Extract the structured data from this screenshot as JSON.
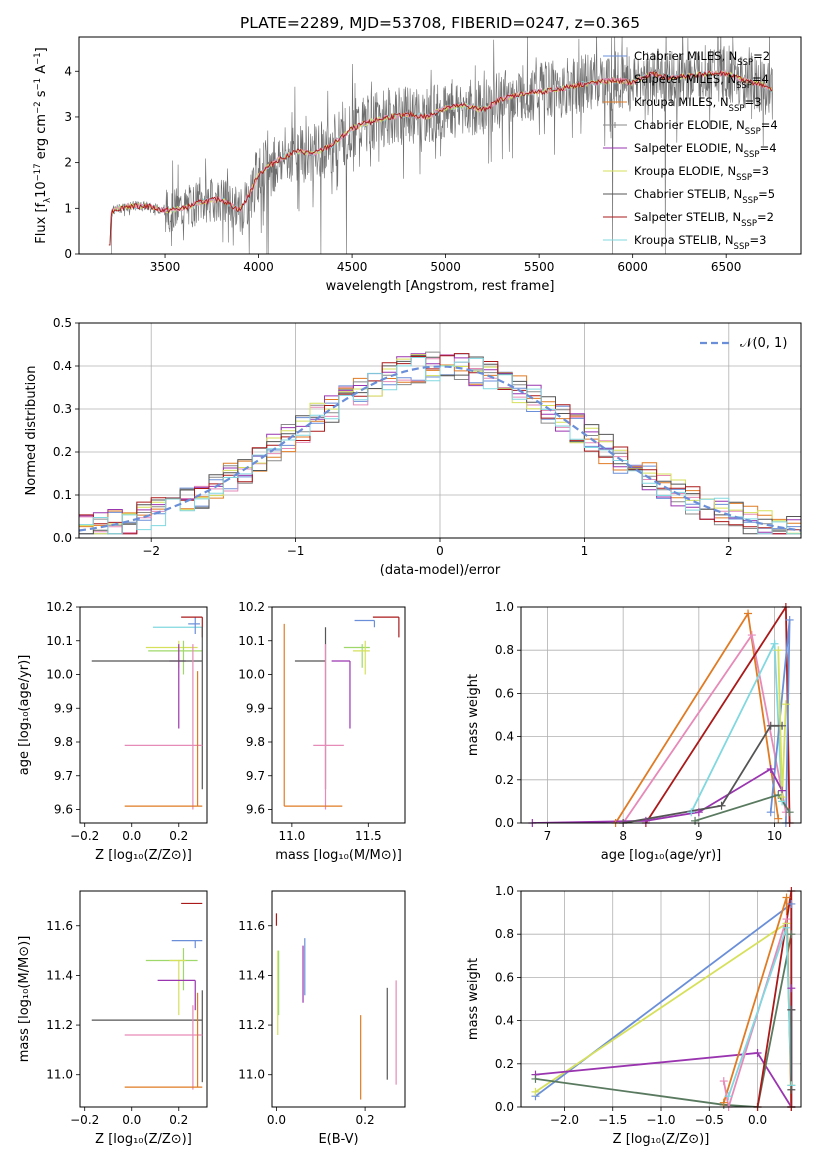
{
  "title": "PLATE=2289, MJD=53708, FIBERID=0247, z=0.365",
  "colors": {
    "Chabrier MILES": "#6a8fd8",
    "Salpeter MILES": "#e68ab8",
    "Kroupa MILES": "#e07b24",
    "Chabrier ELODIE": "#8a8a8a",
    "Salpeter ELODIE": "#9a35b0",
    "Kroupa ELODIE": "#d6e05a",
    "Chabrier STELIB": "#555555",
    "Salpeter STELIB": "#aa1a1a",
    "Kroupa STELIB": "#80d8e0",
    "Extra": "#9fd86a",
    "Dark": "#5a7a60"
  },
  "chart_data": [
    {
      "id": "spectrum",
      "type": "line",
      "xlabel": "wavelength [Angstrom, rest frame]",
      "ylabel": "Flux [f$_\\lambda$10$^{-17}$ erg cm$^{-2}$ s$^{-1}$ A$^{-1}$]",
      "xlim": [
        3040,
        6900
      ],
      "ylim": [
        0,
        4.75
      ],
      "xticks": [
        3500,
        4000,
        4500,
        5000,
        5500,
        6000,
        6500
      ],
      "yticks": [
        0,
        1,
        2,
        3,
        4
      ],
      "legend_position": "top-right",
      "legend": [
        {
          "label": "Chabrier MILES, N",
          "sub": "SSP",
          "suffix": "=2",
          "color": "#6a8fd8"
        },
        {
          "label": "Salpeter MILES, N",
          "sub": "SSP",
          "suffix": "=4",
          "color": "#e68ab8"
        },
        {
          "label": "Kroupa MILES, N",
          "sub": "SSP",
          "suffix": "=3",
          "color": "#e07b24"
        },
        {
          "label": "Chabrier ELODIE, N",
          "sub": "SSP",
          "suffix": "=4",
          "color": "#8a8a8a"
        },
        {
          "label": "Salpeter ELODIE, N",
          "sub": "SSP",
          "suffix": "=4",
          "color": "#9a35b0"
        },
        {
          "label": "Kroupa ELODIE, N",
          "sub": "SSP",
          "suffix": "=3",
          "color": "#d6e05a"
        },
        {
          "label": "Chabrier STELIB, N",
          "sub": "SSP",
          "suffix": "=5",
          "color": "#555555"
        },
        {
          "label": "Salpeter STELIB, N",
          "sub": "SSP",
          "suffix": "=2",
          "color": "#aa1a1a"
        },
        {
          "label": "Kroupa STELIB, N",
          "sub": "SSP",
          "suffix": "=3",
          "color": "#80d8e0"
        }
      ],
      "model_continuum": {
        "x": [
          3200,
          3220,
          3300,
          3400,
          3500,
          3600,
          3700,
          3800,
          3900,
          3950,
          4000,
          4100,
          4200,
          4300,
          4400,
          4500,
          4600,
          4700,
          4800,
          4900,
          5000,
          5100,
          5200,
          5300,
          5400,
          5500,
          5600,
          5700,
          5800,
          5900,
          6000,
          6100,
          6200,
          6300,
          6400,
          6500,
          6600,
          6700,
          6750
        ],
        "y": [
          0.7,
          0.95,
          1.05,
          1.05,
          0.95,
          1.0,
          1.15,
          1.2,
          0.95,
          1.3,
          1.75,
          2.05,
          2.25,
          2.2,
          2.4,
          2.75,
          2.9,
          3.0,
          3.05,
          3.0,
          3.2,
          3.25,
          3.15,
          3.4,
          3.5,
          3.55,
          3.6,
          3.7,
          3.75,
          3.8,
          3.75,
          3.95,
          3.85,
          3.9,
          3.95,
          3.95,
          3.8,
          3.7,
          3.55
        ]
      },
      "noise_amplitude": 0.6
    },
    {
      "id": "residuals",
      "type": "area",
      "xlabel": "(data-model)/error",
      "ylabel": "Normed distribution",
      "xlim": [
        -2.5,
        2.5
      ],
      "ylim": [
        0,
        0.5
      ],
      "xticks": [
        -2,
        -1,
        0,
        1,
        2
      ],
      "xticklabels": [
        "−2",
        "−1",
        "0",
        "1",
        "2"
      ],
      "yticks": [
        0.0,
        0.1,
        0.2,
        0.3,
        0.4,
        0.5
      ],
      "yticklabels": [
        "0.0",
        "0.1",
        "0.2",
        "0.3",
        "0.4",
        "0.5"
      ],
      "legend_position": "top-right",
      "legend": [
        {
          "label": "𝒩(0, 1)",
          "color": "#6a8fd8",
          "dashed": true
        }
      ],
      "bin_edges_start": -2.5,
      "bin_width": 0.1
    },
    {
      "id": "age_vs_Z",
      "type": "scatter",
      "xlabel": "Z [log₁₀(Z/Z⊙)]",
      "ylabel": "age  [log₁₀(age/yr)]",
      "xlim": [
        -0.22,
        0.32
      ],
      "ylim": [
        9.56,
        10.2
      ],
      "xticks": [
        -0.2,
        0.0,
        0.2
      ],
      "xticklabels": [
        "−0.2",
        "0.0",
        "0.2"
      ],
      "yticks": [
        9.6,
        9.7,
        9.8,
        9.9,
        10.0,
        10.1,
        10.2
      ],
      "yticklabels": [
        "9.6",
        "9.7",
        "9.8",
        "9.9",
        "10.0",
        "10.1",
        "10.2"
      ],
      "points": [
        {
          "x": 0.24,
          "xerr": [
            0.15,
            0.06
          ],
          "y": 10.14,
          "yerr": [
            0.0,
            0.0
          ],
          "color": "#80d8e0"
        },
        {
          "x": 0.27,
          "xerr": [
            0.03,
            0.02
          ],
          "y": 10.15,
          "yerr": [
            0.03,
            0.02
          ],
          "color": "#6a8fd8"
        },
        {
          "x": 0.3,
          "xerr": [
            0.09,
            0.0
          ],
          "y": 10.17,
          "yerr": [
            0.06,
            0.0
          ],
          "color": "#aa1a1a"
        },
        {
          "x": 0.2,
          "xerr": [
            0.14,
            0.08
          ],
          "y": 10.08,
          "yerr": [
            0.06,
            0.02
          ],
          "color": "#d6e05a"
        },
        {
          "x": 0.22,
          "xerr": [
            0.15,
            0.08
          ],
          "y": 10.07,
          "yerr": [
            0.07,
            0.03
          ],
          "color": "#9fd86a"
        },
        {
          "x": 0.2,
          "xerr": [
            0.04,
            0.03
          ],
          "y": 10.04,
          "yerr": [
            0.2,
            0.05
          ],
          "color": "#9a35b0"
        },
        {
          "x": 0.3,
          "xerr": [
            0.47,
            0.0
          ],
          "y": 10.04,
          "yerr": [
            0.38,
            0.1
          ],
          "color": "#555555"
        },
        {
          "x": 0.26,
          "xerr": [
            0.29,
            0.04
          ],
          "y": 9.79,
          "yerr": [
            0.19,
            0.3
          ],
          "color": "#e68ab8"
        },
        {
          "x": 0.28,
          "xerr": [
            0.31,
            0.02
          ],
          "y": 9.61,
          "yerr": [
            0.0,
            0.4
          ],
          "color": "#e07b24"
        }
      ]
    },
    {
      "id": "age_vs_mass",
      "type": "scatter",
      "xlabel": "mass [log₁₀(M/M⊙)]",
      "ylabel": "",
      "xlim": [
        10.87,
        11.74
      ],
      "ylim": [
        9.56,
        10.2
      ],
      "xticks": [
        11.0,
        11.5
      ],
      "xticklabels": [
        "11.0",
        "11.5"
      ],
      "yticks": [
        9.6,
        9.7,
        9.8,
        9.9,
        10.0,
        10.1,
        10.2
      ],
      "yticklabels": [
        "9.6",
        "9.7",
        "9.8",
        "9.9",
        "10.0",
        "10.1",
        "10.2"
      ],
      "points": [
        {
          "x": 11.54,
          "xerr": [
            0.13,
            0.0
          ],
          "y": 10.16,
          "yerr": [
            0.02,
            0.0
          ],
          "color": "#6a8fd8"
        },
        {
          "x": 11.7,
          "xerr": [
            0.17,
            0.0
          ],
          "y": 10.17,
          "yerr": [
            0.06,
            0.0
          ],
          "color": "#aa1a1a"
        },
        {
          "x": 11.46,
          "xerr": [
            0.12,
            0.05
          ],
          "y": 10.08,
          "yerr": [
            0.06,
            0.01
          ],
          "color": "#9fd86a"
        },
        {
          "x": 11.48,
          "xerr": [
            0.08,
            0.03
          ],
          "y": 10.07,
          "yerr": [
            0.07,
            0.03
          ],
          "color": "#d6e05a"
        },
        {
          "x": 11.38,
          "xerr": [
            0.12,
            0.0
          ],
          "y": 10.04,
          "yerr": [
            0.2,
            0.0
          ],
          "color": "#9a35b0"
        },
        {
          "x": 11.22,
          "xerr": [
            0.2,
            0.0
          ],
          "y": 10.04,
          "yerr": [
            0.38,
            0.1
          ],
          "color": "#555555"
        },
        {
          "x": 11.22,
          "xerr": [
            0.08,
            0.12
          ],
          "y": 9.79,
          "yerr": [
            0.19,
            0.3
          ],
          "color": "#e68ab8"
        },
        {
          "x": 10.95,
          "xerr": [
            0.0,
            0.38
          ],
          "y": 9.61,
          "yerr": [
            0.0,
            0.54
          ],
          "color": "#e07b24"
        }
      ]
    },
    {
      "id": "weight_vs_age",
      "type": "line",
      "xlabel": "age  [log₁₀(age/yr)]",
      "ylabel": "mass weight",
      "xlim": [
        6.65,
        10.35
      ],
      "ylim": [
        0.0,
        1.0
      ],
      "xticks": [
        7,
        8,
        9,
        10
      ],
      "xticklabels": [
        "7",
        "8",
        "9",
        "10"
      ],
      "yticks": [
        0.0,
        0.2,
        0.4,
        0.6,
        0.8,
        1.0
      ],
      "yticklabels": [
        "0.0",
        "0.2",
        "0.4",
        "0.6",
        "0.8",
        "1.0"
      ],
      "series": [
        {
          "color": "#e07b24",
          "x": [
            7.9,
            9.65,
            10.05
          ],
          "y": [
            0.0,
            0.97,
            0.02
          ]
        },
        {
          "color": "#e68ab8",
          "x": [
            8.0,
            9.7,
            10.15
          ],
          "y": [
            0.0,
            0.87,
            0.05
          ]
        },
        {
          "color": "#aa1a1a",
          "x": [
            8.3,
            10.15,
            10.2
          ],
          "y": [
            0.0,
            1.0,
            0.0
          ]
        },
        {
          "color": "#80d8e0",
          "x": [
            8.9,
            10.0,
            10.1
          ],
          "y": [
            0.05,
            0.83,
            0.1
          ]
        },
        {
          "color": "#6a8fd8",
          "x": [
            9.95,
            10.2,
            10.15
          ],
          "y": [
            0.05,
            0.94,
            0.0
          ]
        },
        {
          "color": "#9a35b0",
          "x": [
            6.8,
            8.3,
            9.0,
            9.95,
            10.1
          ],
          "y": [
            0.0,
            0.01,
            0.05,
            0.25,
            0.15
          ]
        },
        {
          "color": "#555555",
          "x": [
            8.0,
            9.3,
            9.95,
            10.1
          ],
          "y": [
            0.0,
            0.08,
            0.45,
            0.45
          ]
        },
        {
          "color": "#5a7a60",
          "x": [
            8.95,
            10.05,
            10.2
          ],
          "y": [
            0.01,
            0.13,
            0.05
          ]
        },
        {
          "color": "#d6e05a",
          "x": [
            10.05,
            10.1,
            10.15
          ],
          "y": [
            0.8,
            0.12,
            0.55
          ]
        }
      ]
    },
    {
      "id": "mass_vs_Z",
      "type": "scatter",
      "xlabel": "Z [log₁₀(Z/Z⊙)]",
      "ylabel": "mass [log₁₀(M/M⊙)]",
      "xlim": [
        -0.22,
        0.32
      ],
      "ylim": [
        10.87,
        11.74
      ],
      "xticks": [
        -0.2,
        0.0,
        0.2
      ],
      "xticklabels": [
        "−0.2",
        "0.0",
        "0.2"
      ],
      "yticks": [
        11.0,
        11.2,
        11.4,
        11.6
      ],
      "yticklabels": [
        "11.0",
        "11.2",
        "11.4",
        "11.6"
      ],
      "points": [
        {
          "x": 0.3,
          "xerr": [
            0.09,
            0.0
          ],
          "y": 11.69,
          "yerr": [
            0.0,
            0.0
          ],
          "color": "#aa1a1a"
        },
        {
          "x": 0.27,
          "xerr": [
            0.1,
            0.03
          ],
          "y": 11.54,
          "yerr": [
            0.03,
            0.0
          ],
          "color": "#6a8fd8"
        },
        {
          "x": 0.22,
          "xerr": [
            0.16,
            0.06
          ],
          "y": 11.46,
          "yerr": [
            0.12,
            0.05
          ],
          "color": "#9fd86a"
        },
        {
          "x": 0.2,
          "xerr": [
            0.04,
            0.03
          ],
          "y": 11.46,
          "yerr": [
            0.22,
            0.0
          ],
          "color": "#d6e05a"
        },
        {
          "x": 0.27,
          "xerr": [
            0.16,
            0.0
          ],
          "y": 11.38,
          "yerr": [
            0.12,
            0.0
          ],
          "color": "#9a35b0"
        },
        {
          "x": 0.3,
          "xerr": [
            0.47,
            0.0
          ],
          "y": 11.22,
          "yerr": [
            0.25,
            0.12
          ],
          "color": "#555555"
        },
        {
          "x": 0.26,
          "xerr": [
            0.29,
            0.04
          ],
          "y": 11.16,
          "yerr": [
            0.22,
            0.12
          ],
          "color": "#e68ab8"
        },
        {
          "x": 0.28,
          "xerr": [
            0.31,
            0.02
          ],
          "y": 10.95,
          "yerr": [
            0.0,
            0.38
          ],
          "color": "#e07b24"
        }
      ]
    },
    {
      "id": "mass_vs_ebv",
      "type": "scatter",
      "xlabel": "E(B-V)",
      "ylabel": "",
      "xlim": [
        -0.01,
        0.29
      ],
      "ylim": [
        10.87,
        11.74
      ],
      "xticks": [
        0.0,
        0.2
      ],
      "xticklabels": [
        "0.0",
        "0.2"
      ],
      "yticks": [
        11.0,
        11.2,
        11.4,
        11.6
      ],
      "yticklabels": [
        "11.0",
        "11.2",
        "11.4",
        "11.6"
      ],
      "points": [
        {
          "x": 0.0,
          "yerr": [
            0.05,
            0.0
          ],
          "y": 11.65,
          "color": "#aa1a1a"
        },
        {
          "x": 0.003,
          "yerr": [
            0.28,
            0.06
          ],
          "y": 11.44,
          "color": "#d6e05a"
        },
        {
          "x": 0.005,
          "yerr": [
            0.2,
            0.06
          ],
          "y": 11.44,
          "color": "#9fd86a"
        },
        {
          "x": 0.06,
          "yerr": [
            0.09,
            0.14
          ],
          "y": 11.38,
          "color": "#9a35b0"
        },
        {
          "x": 0.064,
          "yerr": [
            0.06,
            0.17
          ],
          "y": 11.38,
          "color": "#6a8fd8"
        },
        {
          "x": 0.19,
          "yerr": [
            0.22,
            0.12
          ],
          "y": 11.12,
          "color": "#e07b24"
        },
        {
          "x": 0.25,
          "yerr": [
            0.2,
            0.17
          ],
          "y": 11.18,
          "color": "#555555"
        },
        {
          "x": 0.27,
          "yerr": [
            0.22,
            0.2
          ],
          "y": 11.18,
          "color": "#e68ab8"
        }
      ]
    },
    {
      "id": "weight_vs_Z",
      "type": "line",
      "xlabel": "Z [log₁₀(Z/Z⊙)]",
      "ylabel": "mass weight",
      "xlim": [
        -2.45,
        0.45
      ],
      "ylim": [
        0.0,
        1.0
      ],
      "xticks": [
        -2.0,
        -1.5,
        -1.0,
        -0.5,
        0.0
      ],
      "xticklabels": [
        "−2.0",
        "−1.5",
        "−1.0",
        "−0.5",
        "0.0"
      ],
      "yticks": [
        0.0,
        0.2,
        0.4,
        0.6,
        0.8,
        1.0
      ],
      "yticklabels": [
        "0.0",
        "0.2",
        "0.4",
        "0.6",
        "0.8",
        "1.0"
      ],
      "series": [
        {
          "color": "#6a8fd8",
          "x": [
            -2.3,
            0.35,
            0.35
          ],
          "y": [
            0.05,
            0.94,
            0.0
          ]
        },
        {
          "color": "#d6e05a",
          "x": [
            -2.3,
            0.3,
            0.35
          ],
          "y": [
            0.07,
            0.85,
            0.1
          ]
        },
        {
          "color": "#9a35b0",
          "x": [
            -2.3,
            0.0,
            0.35,
            0.35
          ],
          "y": [
            0.15,
            0.25,
            0.0,
            0.55
          ]
        },
        {
          "color": "#5a7a60",
          "x": [
            -2.3,
            -0.35,
            0.0,
            0.35
          ],
          "y": [
            0.13,
            0.01,
            0.0,
            0.8
          ]
        },
        {
          "color": "#e07b24",
          "x": [
            -0.35,
            0.3,
            0.35
          ],
          "y": [
            0.02,
            0.97,
            0.0
          ]
        },
        {
          "color": "#e68ab8",
          "x": [
            -0.35,
            -0.3,
            0.3
          ],
          "y": [
            0.12,
            0.0,
            0.87
          ]
        },
        {
          "color": "#aa1a1a",
          "x": [
            0.0,
            0.35,
            0.35
          ],
          "y": [
            0.0,
            1.0,
            0.0
          ]
        },
        {
          "color": "#80d8e0",
          "x": [
            -0.3,
            0.3,
            0.35
          ],
          "y": [
            0.05,
            0.83,
            0.1
          ]
        },
        {
          "color": "#555555",
          "x": [
            0.35,
            0.35,
            0.35
          ],
          "y": [
            0.08,
            0.45,
            0.45
          ]
        }
      ]
    }
  ]
}
